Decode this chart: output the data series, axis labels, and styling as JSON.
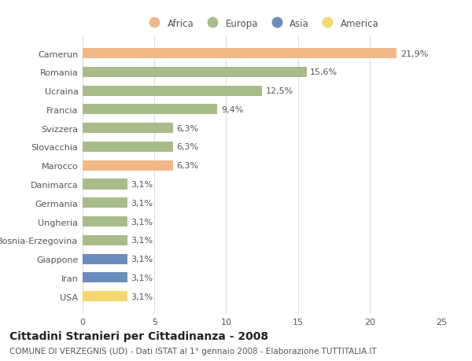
{
  "categories": [
    "USA",
    "Iran",
    "Giappone",
    "Bosnia-Erzegovina",
    "Ungheria",
    "Germania",
    "Danimarca",
    "Marocco",
    "Slovacchia",
    "Svizzera",
    "Francia",
    "Ucraina",
    "Romania",
    "Camerun"
  ],
  "values": [
    3.1,
    3.1,
    3.1,
    3.1,
    3.1,
    3.1,
    3.1,
    6.3,
    6.3,
    6.3,
    9.4,
    12.5,
    15.6,
    21.9
  ],
  "colors": [
    "#f5d76e",
    "#6b8cba",
    "#6b8cba",
    "#a8bc8a",
    "#a8bc8a",
    "#a8bc8a",
    "#a8bc8a",
    "#f0b98a",
    "#a8bc8a",
    "#a8bc8a",
    "#a8bc8a",
    "#a8bc8a",
    "#a8bc8a",
    "#f0b98a"
  ],
  "labels": [
    "3,1%",
    "3,1%",
    "3,1%",
    "3,1%",
    "3,1%",
    "3,1%",
    "3,1%",
    "6,3%",
    "6,3%",
    "6,3%",
    "9,4%",
    "12,5%",
    "15,6%",
    "21,9%"
  ],
  "legend": [
    {
      "label": "Africa",
      "color": "#f0b98a"
    },
    {
      "label": "Europa",
      "color": "#a8bc8a"
    },
    {
      "label": "Asia",
      "color": "#6b8cba"
    },
    {
      "label": "America",
      "color": "#f5d76e"
    }
  ],
  "title": "Cittadini Stranieri per Cittadinanza - 2008",
  "subtitle": "COMUNE DI VERZEGNIS (UD) - Dati ISTAT al 1° gennaio 2008 - Elaborazione TUTTITALIA.IT",
  "xlim": [
    0,
    25
  ],
  "xticks": [
    0,
    5,
    10,
    15,
    20,
    25
  ],
  "background_color": "#ffffff",
  "bar_height": 0.55,
  "grid_color": "#dddddd",
  "text_color": "#555555",
  "label_fontsize": 8,
  "tick_fontsize": 8,
  "title_fontsize": 10,
  "subtitle_fontsize": 7.5
}
